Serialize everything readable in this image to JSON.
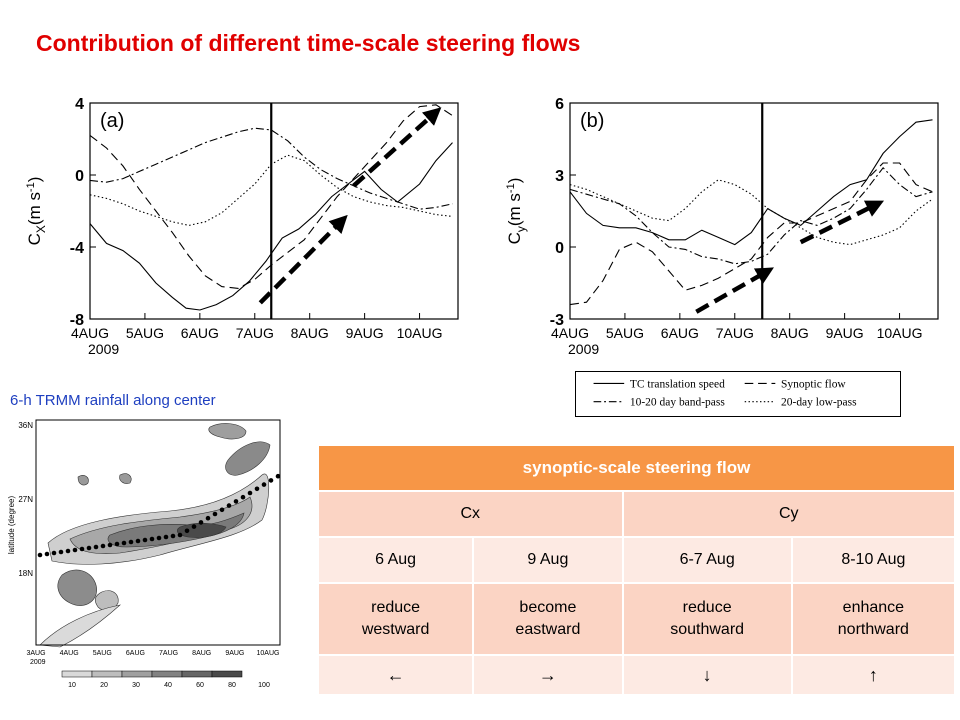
{
  "slide": {
    "title": "Contribution of different time-scale steering flows",
    "rain_caption": "6-h TRMM rainfall along center"
  },
  "chart_data": [
    {
      "type": "line",
      "panel_label": "(a)",
      "ylabel": "C",
      "ylabel_sub": "X",
      "ylabel_unit": "(m s",
      "ylabel_exp": "-1",
      "ylabel_close": ")",
      "ylim": [
        -8,
        4
      ],
      "yticks": [
        4,
        0,
        -4,
        -8
      ],
      "xlim": [
        0,
        6.7
      ],
      "xticks": [
        0,
        1,
        2,
        3,
        4,
        5,
        6
      ],
      "xticklabels": [
        "4AUG",
        "5AUG",
        "6AUG",
        "7AUG",
        "8AUG",
        "9AUG",
        "10AUG"
      ],
      "year_label": "2009",
      "vline_x": 3.3,
      "series": [
        {
          "style": "solid",
          "x": [
            0,
            0.3,
            0.6,
            0.9,
            1.2,
            1.5,
            1.75,
            2.0,
            2.3,
            2.6,
            2.9,
            3.2,
            3.5,
            3.8,
            4.1,
            4.4,
            4.7,
            5.0,
            5.3,
            5.6,
            6.0,
            6.3,
            6.6
          ],
          "y": [
            -2.7,
            -3.8,
            -4.2,
            -4.9,
            -6.0,
            -6.8,
            -7.4,
            -7.5,
            -7.2,
            -6.7,
            -5.9,
            -4.8,
            -3.5,
            -3.0,
            -2.2,
            -1.2,
            -0.5,
            0.2,
            -0.8,
            -1.5,
            -0.5,
            0.8,
            1.8
          ]
        },
        {
          "style": "dash",
          "x": [
            0,
            0.3,
            0.6,
            0.9,
            1.2,
            1.5,
            1.8,
            2.1,
            2.4,
            2.7,
            3.0,
            3.3,
            3.6,
            3.9,
            4.2,
            4.5,
            4.8,
            5.1,
            5.4,
            5.7,
            6.0,
            6.3,
            6.6
          ],
          "y": [
            2.2,
            1.5,
            0.5,
            -0.8,
            -2.0,
            -3.2,
            -4.5,
            -5.6,
            -6.2,
            -6.3,
            -5.8,
            -5.0,
            -4.3,
            -3.6,
            -2.4,
            -1.2,
            -0.2,
            0.8,
            1.8,
            3.0,
            3.8,
            3.9,
            3.3
          ]
        },
        {
          "style": "dashdot",
          "x": [
            0,
            0.3,
            0.6,
            0.9,
            1.2,
            1.5,
            1.8,
            2.1,
            2.4,
            2.7,
            3.0,
            3.3,
            3.6,
            3.9,
            4.2,
            4.5,
            4.8,
            5.1,
            5.4,
            5.7,
            6.0,
            6.3,
            6.6
          ],
          "y": [
            -0.3,
            -0.4,
            -0.2,
            0.2,
            0.6,
            1.0,
            1.4,
            1.8,
            2.1,
            2.4,
            2.6,
            2.5,
            1.9,
            1.0,
            0.3,
            -0.2,
            -0.6,
            -1.0,
            -1.3,
            -1.6,
            -1.9,
            -1.8,
            -1.6
          ]
        },
        {
          "style": "dotted",
          "x": [
            0,
            0.3,
            0.6,
            0.9,
            1.2,
            1.5,
            1.8,
            2.1,
            2.4,
            2.7,
            3.0,
            3.3,
            3.6,
            3.9,
            4.2,
            4.5,
            4.8,
            5.1,
            5.4,
            5.7,
            6.0,
            6.3,
            6.6
          ],
          "y": [
            -1.1,
            -1.3,
            -1.6,
            -2.0,
            -2.3,
            -2.6,
            -2.8,
            -2.6,
            -2.1,
            -1.3,
            -0.5,
            0.6,
            1.1,
            0.8,
            0.0,
            -0.7,
            -1.2,
            -1.5,
            -1.7,
            -1.8,
            -2.0,
            -2.2,
            -2.3
          ]
        }
      ],
      "arrows": [
        {
          "x1": 3.1,
          "y1": -7.1,
          "x2": 4.6,
          "y2": -2.5
        },
        {
          "x1": 4.8,
          "y1": -0.6,
          "x2": 6.3,
          "y2": 3.5
        }
      ]
    },
    {
      "type": "line",
      "panel_label": "(b)",
      "ylabel": "C",
      "ylabel_sub": "y",
      "ylabel_unit": "(m s",
      "ylabel_exp": "-1",
      "ylabel_close": ")",
      "ylim": [
        -3,
        6
      ],
      "yticks": [
        6,
        3,
        0,
        -3
      ],
      "xlim": [
        0,
        6.7
      ],
      "xticks": [
        0,
        1,
        2,
        3,
        4,
        5,
        6
      ],
      "xticklabels": [
        "4AUG",
        "5AUG",
        "6AUG",
        "7AUG",
        "8AUG",
        "9AUG",
        "10AUG"
      ],
      "year_label": "2009",
      "vline_x": 3.5,
      "series": [
        {
          "style": "solid",
          "x": [
            0,
            0.3,
            0.6,
            0.9,
            1.2,
            1.5,
            1.8,
            2.1,
            2.4,
            2.7,
            3.0,
            3.3,
            3.6,
            3.9,
            4.2,
            4.5,
            4.8,
            5.1,
            5.4,
            5.7,
            6.0,
            6.3,
            6.6
          ],
          "y": [
            2.3,
            1.4,
            0.9,
            0.8,
            0.8,
            0.6,
            0.3,
            0.3,
            0.7,
            0.4,
            0.1,
            0.6,
            1.6,
            1.2,
            0.9,
            1.5,
            2.1,
            2.6,
            2.8,
            3.9,
            4.6,
            5.2,
            5.3
          ]
        },
        {
          "style": "dash",
          "x": [
            0,
            0.3,
            0.6,
            0.9,
            1.2,
            1.5,
            1.8,
            2.1,
            2.4,
            2.7,
            3.0,
            3.3,
            3.6,
            3.9,
            4.2,
            4.5,
            4.8,
            5.1,
            5.4,
            5.7,
            6.0,
            6.3,
            6.6
          ],
          "y": [
            -2.4,
            -2.3,
            -1.4,
            -0.1,
            0.2,
            -0.2,
            -1.0,
            -1.8,
            -1.6,
            -1.3,
            -0.9,
            -0.5,
            0.4,
            1.0,
            1.0,
            1.3,
            1.6,
            1.9,
            2.8,
            3.5,
            3.5,
            2.6,
            2.3
          ]
        },
        {
          "style": "dashdot",
          "x": [
            0,
            0.3,
            0.6,
            0.9,
            1.2,
            1.5,
            1.8,
            2.1,
            2.4,
            2.7,
            3.0,
            3.3,
            3.6,
            3.9,
            4.2,
            4.5,
            4.8,
            5.1,
            5.4,
            5.7,
            6.0,
            6.3,
            6.6
          ],
          "y": [
            2.4,
            2.2,
            2.0,
            1.8,
            1.3,
            0.6,
            0.0,
            -0.1,
            -0.4,
            -0.5,
            -0.7,
            -0.6,
            -0.3,
            0.5,
            1.1,
            0.9,
            1.2,
            1.6,
            2.4,
            3.3,
            2.6,
            2.1,
            2.3
          ]
        },
        {
          "style": "dotted",
          "x": [
            0,
            0.3,
            0.6,
            0.9,
            1.2,
            1.5,
            1.8,
            2.1,
            2.4,
            2.7,
            3.0,
            3.3,
            3.6,
            3.9,
            4.2,
            4.5,
            4.8,
            5.1,
            5.4,
            5.7,
            6.0,
            6.3,
            6.6
          ],
          "y": [
            2.6,
            2.4,
            2.1,
            1.8,
            1.5,
            1.2,
            1.1,
            1.6,
            2.3,
            2.8,
            2.6,
            2.2,
            1.6,
            1.2,
            0.8,
            0.4,
            0.2,
            0.1,
            0.3,
            0.5,
            0.8,
            1.5,
            2.0
          ]
        }
      ],
      "arrows": [
        {
          "x1": 2.3,
          "y1": -2.7,
          "x2": 3.6,
          "y2": -1.0
        },
        {
          "x1": 4.2,
          "y1": 0.2,
          "x2": 5.6,
          "y2": 1.8
        }
      ]
    }
  ],
  "legend": {
    "items": [
      {
        "label": "TC translation speed",
        "style": "solid"
      },
      {
        "label": "Synoptic flow",
        "style": "dash"
      },
      {
        "label": "10-20 day band-pass",
        "style": "dashdot"
      },
      {
        "label": "20-day low-pass",
        "style": "dotted"
      }
    ]
  },
  "rain_map": {
    "ylabel": "latitude (degree)",
    "yticklabels": [
      "36N",
      "27N",
      "18N"
    ],
    "xticklabels": [
      "3AUG",
      "4AUG",
      "5AUG",
      "6AUG",
      "7AUG",
      "8AUG",
      "9AUG",
      "10AUG"
    ],
    "year_label": "2009",
    "colorbar_labels": [
      "10",
      "20",
      "30",
      "40",
      "60",
      "80",
      "100"
    ],
    "colorbar_colors": [
      "#d9d9d9",
      "#bdbdbd",
      "#a0a0a0",
      "#828282",
      "#666666",
      "#4a4a4a"
    ]
  },
  "table": {
    "header": "synoptic-scale steering flow",
    "groups": [
      "Cx",
      "Cy"
    ],
    "dates": [
      "6 Aug",
      "9 Aug",
      "6-7 Aug",
      "8-10 Aug"
    ],
    "effects": [
      [
        "reduce",
        "westward"
      ],
      [
        "become",
        "eastward"
      ],
      [
        "reduce",
        "southward"
      ],
      [
        "enhance",
        "northward"
      ]
    ],
    "arrows": [
      "←",
      "→",
      "↓",
      "↑"
    ]
  },
  "colors": {
    "title": "#e00000",
    "caption": "#1e3fc0",
    "table_header": "#f79646",
    "table_row_dark": "#fbd4c4",
    "table_row_light": "#fdeae3"
  }
}
